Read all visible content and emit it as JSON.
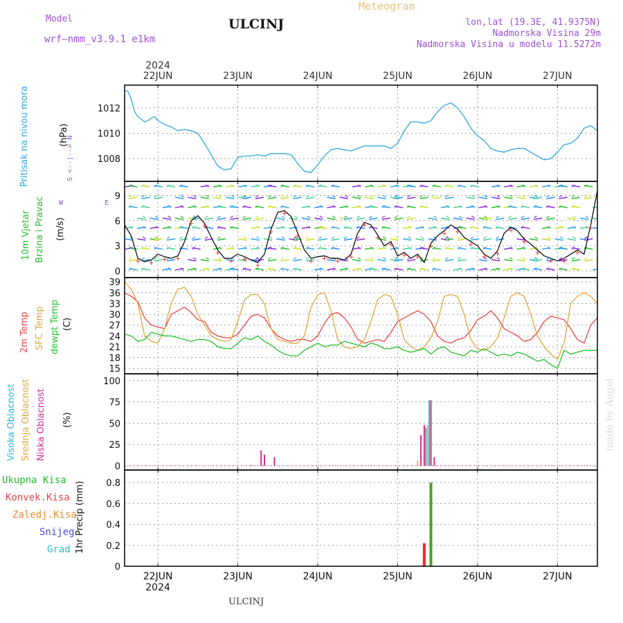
{
  "header": {
    "model_label": "Model",
    "model_name": "wrf—nmm_v3.9.1  e1km",
    "station": "ULCINJ",
    "product": "Meteogram",
    "lonlat": "lon,lat (19.3E, 41.9375N)",
    "altitude": "Nadmorska Visina 29m",
    "model_altitude": "Nadmorska Visina u modelu 11.5272m",
    "footer_station": "ULCINJ",
    "credit": "made by Angel"
  },
  "time_axis": {
    "year": "2024",
    "days": [
      "22JUN",
      "23JUN",
      "24JUN",
      "25JUN",
      "26JUN",
      "27JUN"
    ]
  },
  "panel_labels": {
    "pressure": {
      "name": "Pritisak na nivou mora",
      "unit": "(hPa)"
    },
    "wind": {
      "name1": "10m Vjetar",
      "name2": "Brzina i Pravac",
      "unit": "(m/s)",
      "compass": "N",
      "compass_e": "E",
      "compass_w": "W",
      "compass_s": "S"
    },
    "temp": {
      "t2m": "2m Temp",
      "sfc": "SFC Temp",
      "dewpt": "dewpt Temp",
      "unit": "(C)"
    },
    "cloud": {
      "high": "Visoka Oblacnost",
      "mid": "Srednja Oblacnost",
      "low": "Niska Oblacnost",
      "unit": "(%)"
    },
    "precip": {
      "total": "Ukupna Kisa",
      "conv": "Konvek.Kisa",
      "frozen": "Zaledj.Kisa",
      "snow": "Snijeg",
      "hail": "Grad",
      "axis": "1hr Precip (mm)"
    }
  },
  "colors": {
    "pressure": "#2ea6e0",
    "t2m": "#e84545",
    "sfc": "#e0a53a",
    "dew": "#22c02a",
    "wind_speed": "#111111",
    "wind_calm": "#e83a3a",
    "high_cloud": "#2bb7d8",
    "mid_cloud": "#e8b74a",
    "low_cloud": "#d0308a",
    "total_precip": "#4aa02a",
    "conv_precip": "#e03030",
    "frozen": "#f08a30",
    "snow": "#4a4ad8",
    "hail": "#2ac0c0",
    "model_purple": "#9b4fd6"
  },
  "chart_data": [
    {
      "type": "line",
      "panel": "pressure",
      "ylabel": "(hPa)",
      "ylim": [
        1006.2,
        1013.8
      ],
      "yticks": [
        1008,
        1010,
        1012
      ],
      "x_unit": "hours from 2024-06-22 00:00",
      "xlim": [
        -10,
        132
      ],
      "x": [
        -10,
        -9,
        -8,
        -7,
        -6,
        -5,
        -4,
        -3,
        -2,
        -1,
        0,
        2,
        4,
        6,
        8,
        10,
        12,
        14,
        16,
        18,
        20,
        22,
        24,
        26,
        28,
        30,
        32,
        34,
        36,
        38,
        40,
        42,
        44,
        46,
        48,
        50,
        52,
        54,
        56,
        58,
        60,
        62,
        64,
        66,
        68,
        70,
        72,
        74,
        76,
        78,
        80,
        82,
        84,
        86,
        88,
        90,
        92,
        94,
        96,
        98,
        100,
        102,
        104,
        106,
        108,
        110,
        112,
        114,
        116,
        118,
        120,
        122,
        124,
        126,
        128,
        130,
        132
      ],
      "series": [
        {
          "values": [
            1013.4,
            1013.3,
            1012.7,
            1011.7,
            1011.3,
            1011.1,
            1010.9,
            1011.0,
            1011.2,
            1011.3,
            1011.0,
            1010.7,
            1010.5,
            1010.2,
            1010.3,
            1010.2,
            1010.0,
            1009.2,
            1008.3,
            1007.4,
            1007.1,
            1007.2,
            1008.1,
            1008.2,
            1008.2,
            1008.3,
            1008.2,
            1008.4,
            1008.4,
            1008.4,
            1008.3,
            1007.6,
            1007.0,
            1006.9,
            1007.5,
            1008.2,
            1008.7,
            1008.8,
            1008.7,
            1008.6,
            1008.8,
            1009.0,
            1009.0,
            1009.0,
            1009.0,
            1008.8,
            1009.2,
            1010.2,
            1010.9,
            1010.9,
            1010.8,
            1011.0,
            1011.7,
            1012.2,
            1012.4,
            1012.0,
            1011.3,
            1010.4,
            1009.8,
            1009.4,
            1008.8,
            1008.6,
            1008.5,
            1008.7,
            1008.8,
            1008.8,
            1008.5,
            1008.2,
            1007.9,
            1008.0,
            1008.5,
            1009.1,
            1009.2,
            1009.6,
            1010.4,
            1010.6,
            1010.2
          ]
        }
      ]
    },
    {
      "type": "line",
      "panel": "wind",
      "ylabel": "(m/s)",
      "ylim": [
        -0.8,
        10.7
      ],
      "yticks": [
        0,
        3,
        6,
        9
      ],
      "xlim": [
        -10,
        132
      ],
      "x": [
        -10,
        -8,
        -6,
        -4,
        -2,
        0,
        2,
        4,
        6,
        8,
        10,
        12,
        14,
        16,
        18,
        20,
        22,
        24,
        26,
        28,
        30,
        32,
        34,
        36,
        38,
        40,
        42,
        44,
        46,
        48,
        50,
        52,
        54,
        56,
        58,
        60,
        62,
        64,
        66,
        68,
        70,
        72,
        74,
        76,
        78,
        80,
        82,
        84,
        86,
        88,
        90,
        92,
        94,
        96,
        98,
        100,
        102,
        104,
        106,
        108,
        110,
        112,
        114,
        116,
        118,
        120,
        122,
        124,
        126,
        128,
        130,
        132
      ],
      "series": [
        {
          "name": "speed",
          "values": [
            5.5,
            4.2,
            1.5,
            1.1,
            1.3,
            2.0,
            1.7,
            1.5,
            1.8,
            3.5,
            6.0,
            6.6,
            5.7,
            4.0,
            2.5,
            1.5,
            1.5,
            2.0,
            1.7,
            1.3,
            1.0,
            2.0,
            5.0,
            7.0,
            7.2,
            6.5,
            4.5,
            2.5,
            1.5,
            1.7,
            1.8,
            1.5,
            1.5,
            1.3,
            2.0,
            4.5,
            5.8,
            5.5,
            4.3,
            3.0,
            3.5,
            1.8,
            2.2,
            1.5,
            2.0,
            1.0,
            3.3,
            4.2,
            4.8,
            5.5,
            5.0,
            4.0,
            3.5,
            3.0,
            2.0,
            1.5,
            2.4,
            4.5,
            5.2,
            4.8,
            3.8,
            3.2,
            2.5,
            1.8,
            1.5,
            1.2,
            1.5,
            2.0,
            2.5,
            2.0,
            5.5,
            9.6
          ]
        }
      ],
      "barbs_note": "wind direction arrows drawn along the panel"
    },
    {
      "type": "line",
      "panel": "temperature",
      "ylabel": "(C)",
      "ylim": [
        13.5,
        40.2
      ],
      "yticks": [
        15,
        18,
        21,
        24,
        27,
        30,
        33,
        36,
        39
      ],
      "xlim": [
        -10,
        132
      ],
      "x": [
        -10,
        -8,
        -6,
        -4,
        -2,
        0,
        2,
        4,
        6,
        8,
        10,
        12,
        14,
        16,
        18,
        20,
        22,
        24,
        26,
        28,
        30,
        32,
        34,
        36,
        38,
        40,
        42,
        44,
        46,
        48,
        50,
        52,
        54,
        56,
        58,
        60,
        62,
        64,
        66,
        68,
        70,
        72,
        74,
        76,
        78,
        80,
        82,
        84,
        86,
        88,
        90,
        92,
        94,
        96,
        98,
        100,
        102,
        104,
        106,
        108,
        110,
        112,
        114,
        116,
        118,
        120,
        122,
        124,
        126,
        128,
        130,
        132
      ],
      "series": [
        {
          "name": "2m Temp",
          "values": [
            36,
            35,
            33.5,
            29,
            27,
            26.5,
            26,
            30,
            31,
            32,
            30.5,
            28.5,
            28,
            25,
            24,
            23.5,
            23.5,
            24.5,
            27,
            29.5,
            30,
            29,
            26,
            24,
            23,
            22.5,
            23,
            23,
            22.5,
            24,
            27.5,
            30,
            30.5,
            29,
            26.5,
            23,
            22,
            22.5,
            23,
            22.5,
            25,
            28,
            29,
            30,
            31,
            30,
            28,
            24,
            22.5,
            22,
            23,
            23.5,
            25.5,
            28.5,
            29.5,
            31,
            29,
            26,
            25,
            24,
            22.5,
            23,
            25,
            28,
            29.5,
            29,
            28.5,
            26,
            23,
            22,
            27,
            29
          ]
        },
        {
          "name": "SFC Temp",
          "values": [
            39,
            37,
            33,
            24,
            22.5,
            22,
            26,
            33,
            37,
            37.5,
            35,
            30,
            27,
            24,
            23,
            22.5,
            23,
            28,
            34,
            35.5,
            35.5,
            33,
            26,
            23,
            22.5,
            22,
            22,
            24,
            32,
            35.5,
            36,
            31,
            23,
            21,
            20.5,
            21,
            23,
            28,
            34,
            35.5,
            35,
            30,
            23,
            21,
            20,
            21,
            23.5,
            28,
            35,
            35.5,
            35,
            30,
            23,
            20.5,
            20,
            21,
            23.5,
            29,
            35,
            36,
            35,
            30,
            24,
            21,
            19,
            17.5,
            22,
            33,
            35,
            36,
            35,
            33
          ]
        },
        {
          "name": "dewpt Temp",
          "values": [
            24.5,
            24,
            22.5,
            23,
            25,
            24.5,
            24,
            24,
            23.5,
            23,
            22.5,
            23,
            23,
            22.5,
            21,
            20.5,
            20.5,
            22,
            23.5,
            23,
            24,
            22.5,
            21.5,
            20,
            19,
            18.5,
            18.5,
            20,
            21,
            22,
            21,
            21.5,
            21.5,
            22.5,
            22,
            21.5,
            21,
            22,
            21.5,
            20.5,
            20.5,
            21,
            20,
            19.5,
            20,
            20.5,
            19,
            20.5,
            21,
            19.5,
            19,
            18.5,
            20,
            19.5,
            20.5,
            19.5,
            18.5,
            19,
            18.5,
            19.5,
            19,
            18,
            17,
            17.5,
            16,
            15,
            20,
            19,
            19.5,
            20,
            20,
            20
          ]
        }
      ]
    },
    {
      "type": "bar",
      "panel": "cloud",
      "ylabel": "(%)",
      "ylim": [
        -5,
        108
      ],
      "yticks": [
        0,
        25,
        50,
        75,
        100
      ],
      "xlim": [
        -10,
        132
      ],
      "series": [
        {
          "name": "Visoka Oblacnost",
          "x": [
            80.5,
            81.5
          ],
          "values": [
            45,
            77
          ]
        },
        {
          "name": "Srednja Oblacnost",
          "x": [
            78,
            81
          ],
          "values": [
            6,
            48
          ]
        },
        {
          "name": "Niska Oblacnost",
          "x": [
            28,
            31,
            32,
            35,
            79,
            80,
            82,
            83
          ],
          "values": [
            1,
            18,
            13,
            10,
            36,
            48,
            77,
            10
          ]
        }
      ]
    },
    {
      "type": "bar",
      "panel": "precip",
      "ylabel": "1hr Precip (mm)",
      "ylim": [
        0,
        0.92
      ],
      "yticks": [
        0,
        0.2,
        0.4,
        0.6,
        0.8
      ],
      "xlim": [
        -10,
        132
      ],
      "series": [
        {
          "name": "Ukupna Kisa",
          "x": [
            80,
            82
          ],
          "values": [
            0.22,
            0.8
          ]
        },
        {
          "name": "Konvek.Kisa",
          "x": [
            80
          ],
          "values": [
            0.22
          ]
        }
      ]
    }
  ]
}
